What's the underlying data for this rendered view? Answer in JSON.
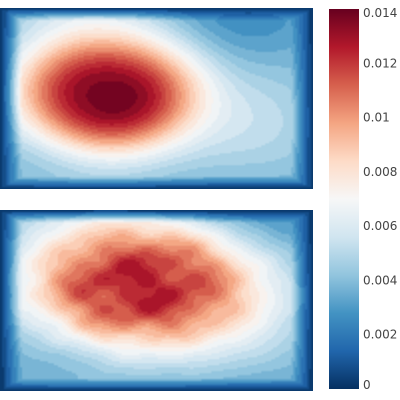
{
  "chart_data": {
    "type": "heatmap",
    "plot_style": "filled contours, two stacked panels sharing one colorbar",
    "colorscale": "RdBu (reversed)",
    "colorscale_stops": [
      {
        "v": 0.0,
        "color": "#053061"
      },
      {
        "v": 0.1,
        "color": "#2166ac"
      },
      {
        "v": 0.2,
        "color": "#4393c3"
      },
      {
        "v": 0.3,
        "color": "#92c5de"
      },
      {
        "v": 0.4,
        "color": "#d1e5f0"
      },
      {
        "v": 0.5,
        "color": "#f7f7f7"
      },
      {
        "v": 0.6,
        "color": "#fddbc7"
      },
      {
        "v": 0.7,
        "color": "#f4a582"
      },
      {
        "v": 0.8,
        "color": "#d6604d"
      },
      {
        "v": 0.9,
        "color": "#b2182b"
      },
      {
        "v": 1.0,
        "color": "#67001f"
      }
    ],
    "zmin": 0,
    "zmax": 0.014,
    "colorbar": {
      "range": [
        0,
        0.014
      ],
      "tick_values": [
        0,
        0.002,
        0.004,
        0.006,
        0.008,
        0.01,
        0.012,
        0.014
      ],
      "tick_labels": [
        "0",
        "0.002",
        "0.004",
        "0.006",
        "0.008",
        "0.01",
        "0.012",
        "0.014"
      ]
    },
    "panels": [
      {
        "name": "top",
        "peak_value": 0.014,
        "peak_location_fraction": [
          0.34,
          0.48
        ],
        "spread_fraction": [
          0.3,
          0.34
        ],
        "shape": "smooth single hotspot shifted left"
      },
      {
        "name": "bottom",
        "peak_value": 0.0125,
        "peak_location_fraction": [
          0.45,
          0.42
        ],
        "spread_fraction": [
          0.4,
          0.38
        ],
        "shape": "irregular, noisy hotspot"
      }
    ]
  }
}
